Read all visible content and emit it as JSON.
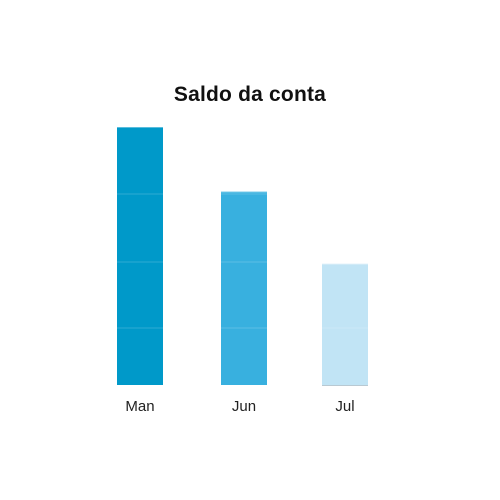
{
  "chart_data": {
    "type": "bar",
    "title": "Saldo da conta",
    "xlabel": "",
    "ylabel": "",
    "categories": [
      "Man",
      "Jun",
      "Jul"
    ],
    "values": [
      100,
      75,
      47
    ],
    "ylim": [
      0,
      100
    ],
    "colors": [
      "#0099c9",
      "#38b0df",
      "#c1e4f5"
    ],
    "grid": false,
    "legend": "none"
  }
}
